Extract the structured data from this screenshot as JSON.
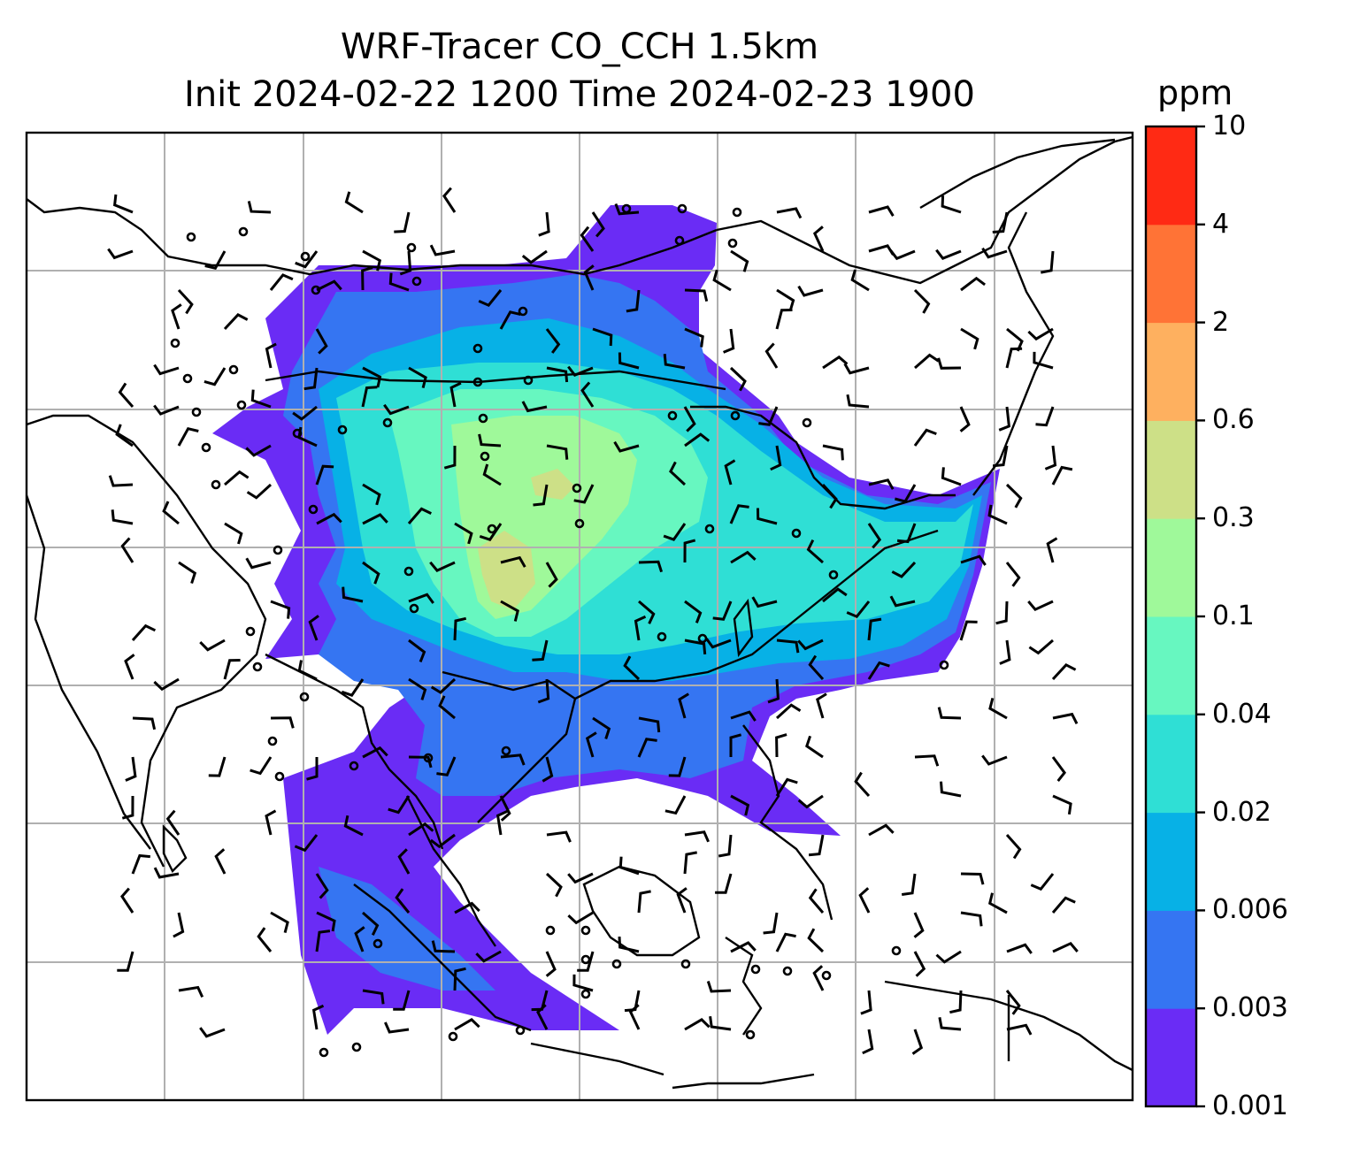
{
  "title": {
    "line1": "WRF-Tracer CO_CCH 1.5km",
    "line2": "Init 2024-02-22 1200 Time 2024-02-23 1900"
  },
  "colorbar": {
    "unit": "ppm",
    "ticks": [
      "10",
      "4",
      "2",
      "0.6",
      "0.3",
      "0.1",
      "0.04",
      "0.02",
      "0.006",
      "0.003",
      "0.001"
    ],
    "colors": [
      "#6a2cf5",
      "#3575f2",
      "#07b1e6",
      "#2fdfd5",
      "#67f7c0",
      "#9ff99a",
      "#cde087",
      "#feb05f",
      "#ff7336",
      "#ff2a14"
    ]
  },
  "map": {
    "field": "CO_CCH tracer concentration",
    "overlays": [
      "coastlines",
      "country borders",
      "lat-lon gridlines",
      "wind barbs"
    ]
  }
}
